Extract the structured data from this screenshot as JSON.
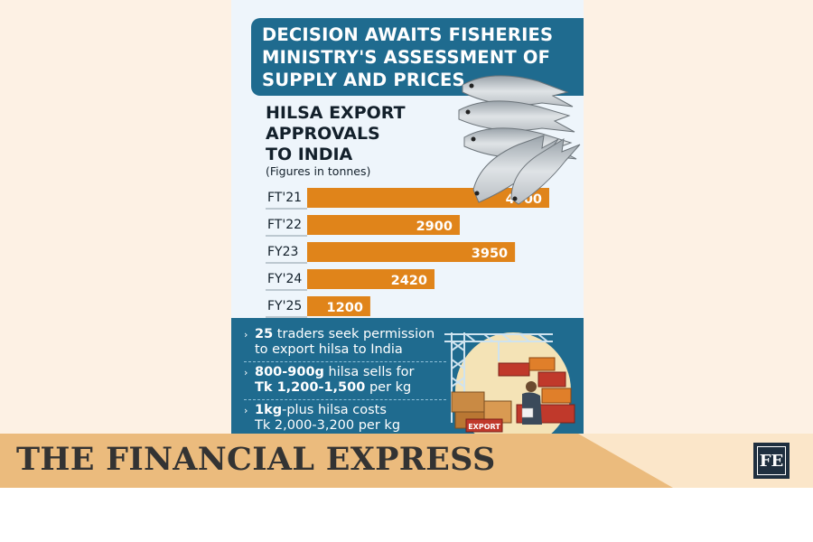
{
  "headline": {
    "lines": [
      "DECISION AWAITS FISHERIES",
      "MINISTRY'S ASSESSMENT OF",
      "SUPPLY AND PRICES"
    ]
  },
  "chart_data": {
    "type": "bar",
    "orientation": "horizontal",
    "title_lines": [
      "HILSA EXPORT",
      "APPROVALS",
      "TO INDIA"
    ],
    "unit_note": "(Figures in tonnes)",
    "categories": [
      "FT'21",
      "FT'22",
      "FY23",
      "FY'24",
      "FY'25"
    ],
    "values": [
      4600,
      2900,
      3950,
      2420,
      1200
    ],
    "xlim": [
      0,
      4600
    ],
    "bar_color": "#e0841a",
    "grid": false,
    "legend": "none"
  },
  "info": {
    "bullets": [
      {
        "bold": "25",
        "text1": " traders seek permission",
        "line2": "to export hilsa to India"
      },
      {
        "bold": "800-900g",
        "text1": " hilsa sells for",
        "line2_bold": "Tk 1,200-1,500",
        "line2": " per kg"
      },
      {
        "bold": "1kg",
        "text1": "-plus hilsa costs",
        "line2": "Tk 2,000-3,200 per kg"
      }
    ],
    "crate_label": "EXPORT"
  },
  "banner": {
    "brand": "THE FINANCIAL EXPRESS",
    "logo": "FE"
  },
  "colors": {
    "panel_blue": "#1f6b8f",
    "bar_orange": "#e0841a",
    "banner_tan": "#ebbb7d",
    "background": "#fdf1e4"
  }
}
